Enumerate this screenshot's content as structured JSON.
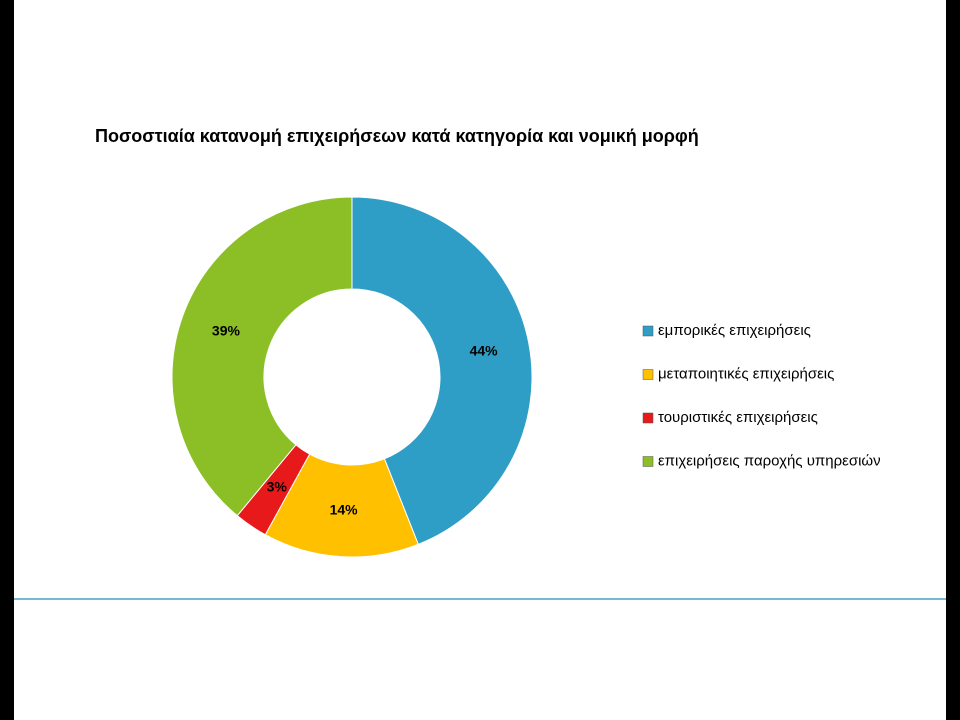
{
  "chart_data": {
    "type": "doughnut",
    "title": "Ποσοστιαία κατανομή επιχειρήσεων κατά κατηγορία και νομική μορφή",
    "categories": [
      "εμπορικές επιχειρήσεις",
      "μεταποιητικές επιχειρήσεις",
      "τουριστικές επιχειρήσεις",
      "επιχειρήσεις παροχής υπηρεσιών"
    ],
    "values": [
      44,
      14,
      3,
      39
    ],
    "value_labels": [
      "44%",
      "14%",
      "3%",
      "39%"
    ],
    "colors": [
      "#2f9ec6",
      "#ffc000",
      "#e8191b",
      "#8cbf26"
    ],
    "legend": "right"
  }
}
